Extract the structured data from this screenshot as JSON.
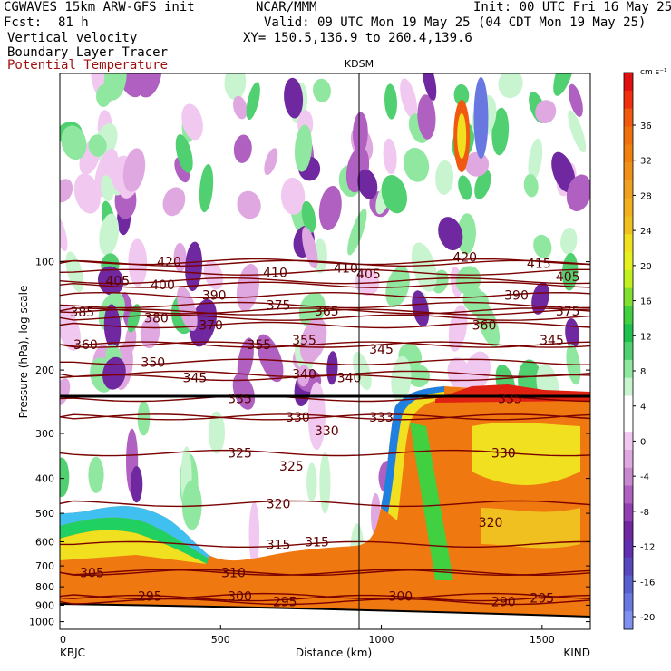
{
  "header": {
    "model": "CGWAVES 15km ARW-GFS init",
    "source": "NCAR/MMM",
    "init": "Init: 00 UTC Fri 16 May 25",
    "fcst_label": "Fcst:",
    "fcst_value": "81 h",
    "valid": "Valid: 09 UTC Mon 19 May 25 (04 CDT Mon 19 May 25)",
    "field1": "Vertical velocity",
    "xy": "XY= 150.5,136.9 to 260.4,139.6",
    "field2": "Boundary Layer Tracer",
    "field3": "Potential Temperature"
  },
  "chart_data": {
    "type": "heatmap",
    "station_marker": "KDSM",
    "xlabel": "Distance (km)",
    "ylabel": "Pressure (hPa), log scale",
    "x_ticks": [
      "0",
      "500",
      "1000",
      "1500"
    ],
    "xlim": [
      0,
      1650
    ],
    "y_ticks": [
      "100",
      "200",
      "300",
      "400",
      "500",
      "600",
      "700",
      "800",
      "900",
      "1000"
    ],
    "ylim": [
      1050,
      30
    ],
    "y_scale": "log",
    "left_endpoint": "KBJC",
    "right_endpoint": "KIND",
    "colorbar": {
      "units": "cm s⁻¹",
      "ticks": [
        "36",
        "32",
        "28",
        "24",
        "20",
        "16",
        "12",
        "8",
        "4",
        "0",
        "-4",
        "-8",
        "-12",
        "-16",
        "-20"
      ],
      "colors": [
        "#e01010",
        "#f03010",
        "#f05a10",
        "#f07010",
        "#f08010",
        "#f09018",
        "#f0a020",
        "#f0b020",
        "#f0c020",
        "#f0e020",
        "#e6f020",
        "#c0f020",
        "#80e030",
        "#40d040",
        "#20c050",
        "#50d070",
        "#90e8a0",
        "#c8f5d0",
        "#ffffff",
        "#ffffff",
        "#f0c8f0",
        "#e0a8e0",
        "#c888d0",
        "#b060c0",
        "#9040b0",
        "#7028a0",
        "#6030b0",
        "#5848c0",
        "#5860d0",
        "#6878e0",
        "#8090f0"
      ]
    },
    "theta_isentropes": [
      {
        "theta": "290",
        "x_km": 1380,
        "p_hpa": 880
      },
      {
        "theta": "295",
        "x_km": 1500,
        "p_hpa": 860
      },
      {
        "theta": "295",
        "x_km": 700,
        "p_hpa": 880
      },
      {
        "theta": "295",
        "x_km": 280,
        "p_hpa": 850
      },
      {
        "theta": "300",
        "x_km": 560,
        "p_hpa": 850
      },
      {
        "theta": "300",
        "x_km": 1060,
        "p_hpa": 850
      },
      {
        "theta": "305",
        "x_km": 100,
        "p_hpa": 730
      },
      {
        "theta": "310",
        "x_km": 540,
        "p_hpa": 730
      },
      {
        "theta": "315",
        "x_km": 680,
        "p_hpa": 610
      },
      {
        "theta": "315",
        "x_km": 800,
        "p_hpa": 600
      },
      {
        "theta": "320",
        "x_km": 680,
        "p_hpa": 470
      },
      {
        "theta": "320",
        "x_km": 1340,
        "p_hpa": 530
      },
      {
        "theta": "325",
        "x_km": 560,
        "p_hpa": 340
      },
      {
        "theta": "325",
        "x_km": 720,
        "p_hpa": 370
      },
      {
        "theta": "330",
        "x_km": 740,
        "p_hpa": 270
      },
      {
        "theta": "330",
        "x_km": 830,
        "p_hpa": 295
      },
      {
        "theta": "330",
        "x_km": 1380,
        "p_hpa": 340
      },
      {
        "theta": "333",
        "x_km": 1000,
        "p_hpa": 270
      },
      {
        "theta": "335",
        "x_km": 560,
        "p_hpa": 240
      },
      {
        "theta": "335",
        "x_km": 1400,
        "p_hpa": 240
      },
      {
        "theta": "340",
        "x_km": 760,
        "p_hpa": 205
      },
      {
        "theta": "340",
        "x_km": 900,
        "p_hpa": 210
      },
      {
        "theta": "345",
        "x_km": 420,
        "p_hpa": 210
      },
      {
        "theta": "345",
        "x_km": 1000,
        "p_hpa": 175
      },
      {
        "theta": "345",
        "x_km": 1530,
        "p_hpa": 165
      },
      {
        "theta": "350",
        "x_km": 290,
        "p_hpa": 190
      },
      {
        "theta": "355",
        "x_km": 620,
        "p_hpa": 170
      },
      {
        "theta": "355",
        "x_km": 760,
        "p_hpa": 165
      },
      {
        "theta": "360",
        "x_km": 80,
        "p_hpa": 170
      },
      {
        "theta": "360",
        "x_km": 1320,
        "p_hpa": 150
      },
      {
        "theta": "365",
        "x_km": 830,
        "p_hpa": 137
      },
      {
        "theta": "370",
        "x_km": 470,
        "p_hpa": 150
      },
      {
        "theta": "375",
        "x_km": 680,
        "p_hpa": 132
      },
      {
        "theta": "375",
        "x_km": 1580,
        "p_hpa": 137
      },
      {
        "theta": "380",
        "x_km": 300,
        "p_hpa": 143
      },
      {
        "theta": "385",
        "x_km": 70,
        "p_hpa": 138
      },
      {
        "theta": "390",
        "x_km": 480,
        "p_hpa": 124
      },
      {
        "theta": "390",
        "x_km": 1420,
        "p_hpa": 124
      },
      {
        "theta": "400",
        "x_km": 320,
        "p_hpa": 116
      },
      {
        "theta": "405",
        "x_km": 180,
        "p_hpa": 113
      },
      {
        "theta": "405",
        "x_km": 960,
        "p_hpa": 108
      },
      {
        "theta": "405",
        "x_km": 1580,
        "p_hpa": 110
      },
      {
        "theta": "410",
        "x_km": 670,
        "p_hpa": 107
      },
      {
        "theta": "410",
        "x_km": 890,
        "p_hpa": 104
      },
      {
        "theta": "415",
        "x_km": 1490,
        "p_hpa": 101
      },
      {
        "theta": "420",
        "x_km": 340,
        "p_hpa": 100
      },
      {
        "theta": "420",
        "x_km": 1260,
        "p_hpa": 97
      }
    ]
  }
}
